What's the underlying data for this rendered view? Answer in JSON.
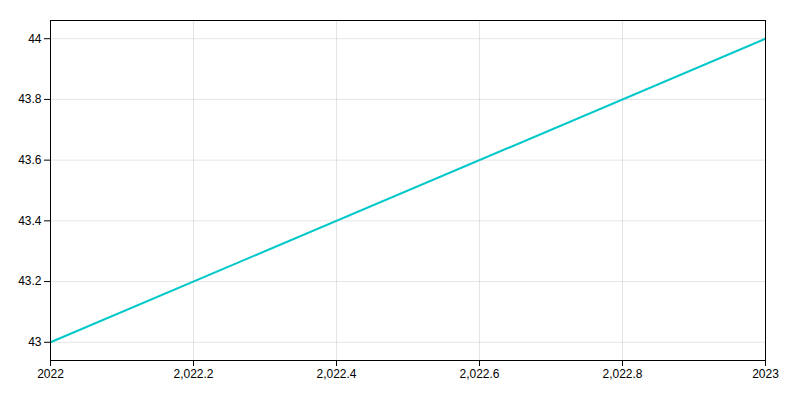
{
  "chart_data": {
    "type": "line",
    "x": [
      2022,
      2023
    ],
    "values": [
      43,
      44
    ],
    "color": "#00c8c8",
    "xlim": [
      2022,
      2023
    ],
    "ylim": [
      42.94,
      44.06
    ],
    "xticks": [
      2022,
      {
        "value": 2022.2,
        "label": "2,022.2"
      },
      {
        "value": 2022.4,
        "label": "2,022.4"
      },
      {
        "value": 2022.6,
        "label": "2,022.6"
      },
      {
        "value": 2022.8,
        "label": "2,022.8"
      },
      2023
    ],
    "yticks": [
      43,
      43.2,
      43.4,
      43.6,
      43.8,
      44
    ],
    "grid": true
  }
}
